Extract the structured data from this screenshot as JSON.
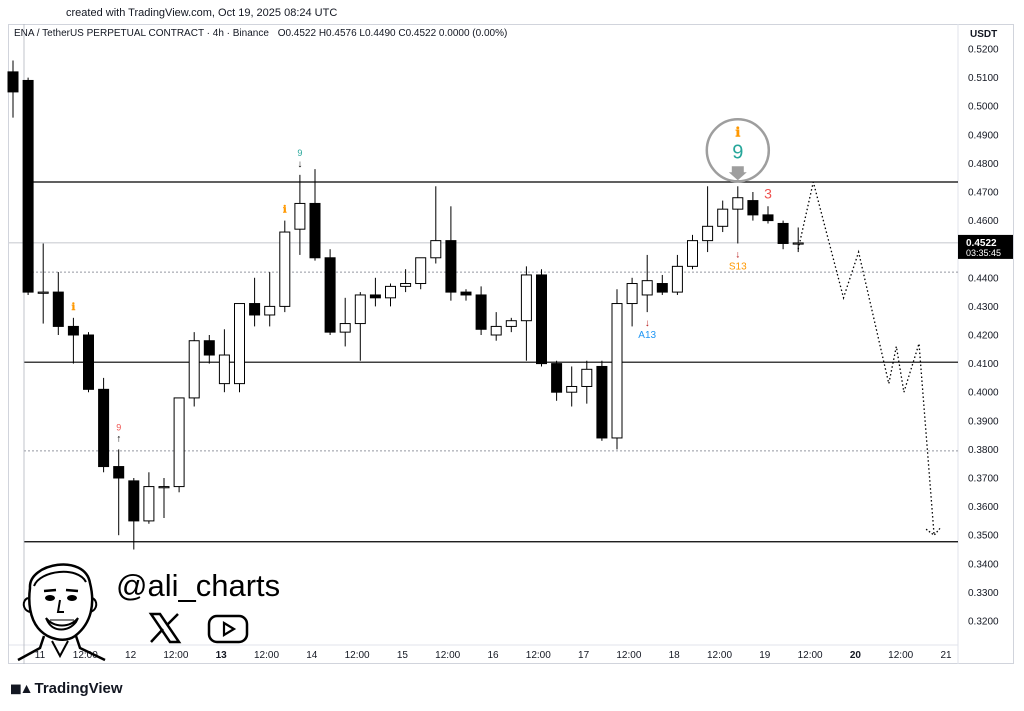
{
  "created_line": "created with TradingView.com, Oct 19, 2025 08:24 UTC",
  "header": {
    "symbol": "ENA / TetherUS PERPETUAL CONTRACT · 4h · Binance",
    "ohlc": "O0.4522  H0.4576  L0.4490  C0.4522  0.0000 (0.00%)"
  },
  "currency": "USDT",
  "watermark": {
    "handle": "@ali_charts",
    "brand": "TradingView"
  },
  "icons": [
    "avatar-caricature",
    "x-logo-icon",
    "youtube-icon",
    "tradingview-logo-icon"
  ],
  "colors": {
    "up_candle": "#ffffff",
    "down_candle": "#000000",
    "setup_green": "#26a69a",
    "setup_red": "#ef5350",
    "countdown_orange": "#ff9800",
    "aggressive_blue": "#2196f3"
  },
  "chart_data": {
    "type": "candlestick",
    "timeframe": "4h",
    "ylim": [
      0.315,
      0.522
    ],
    "y_ticks": [
      "0.5200",
      "0.5100",
      "0.5000",
      "0.4900",
      "0.4800",
      "0.4700",
      "0.4600",
      "0.4500",
      "0.4400",
      "0.4300",
      "0.4200",
      "0.4100",
      "0.4000",
      "0.3900",
      "0.3800",
      "0.3700",
      "0.3600",
      "0.3500",
      "0.3400",
      "0.3300",
      "0.3200"
    ],
    "x_ticks": [
      "11",
      "12:00",
      "12",
      "12:00",
      "13",
      "12:00",
      "14",
      "12:00",
      "15",
      "12:00",
      "16",
      "12:00",
      "17",
      "12:00",
      "18",
      "12:00",
      "19",
      "12:00",
      "20",
      "12:00",
      "21"
    ],
    "last_price": {
      "value": "0.4522",
      "countdown": "03:35:45"
    },
    "horizontal_levels": [
      0.4735,
      0.4105,
      0.3477
    ],
    "dashed_levels": [
      0.442,
      0.3795
    ],
    "candles": [
      {
        "o": 0.512,
        "h": 0.516,
        "l": 0.496,
        "c": 0.505
      },
      {
        "o": 0.509,
        "h": 0.51,
        "l": 0.434,
        "c": 0.435
      },
      {
        "o": 0.435,
        "h": 0.452,
        "l": 0.424,
        "c": 0.435
      },
      {
        "o": 0.435,
        "h": 0.442,
        "l": 0.42,
        "c": 0.423
      },
      {
        "o": 0.423,
        "h": 0.426,
        "l": 0.41,
        "c": 0.42
      },
      {
        "o": 0.42,
        "h": 0.421,
        "l": 0.4,
        "c": 0.401
      },
      {
        "o": 0.401,
        "h": 0.405,
        "l": 0.372,
        "c": 0.374
      },
      {
        "o": 0.374,
        "h": 0.38,
        "l": 0.35,
        "c": 0.37
      },
      {
        "o": 0.369,
        "h": 0.37,
        "l": 0.345,
        "c": 0.355
      },
      {
        "o": 0.355,
        "h": 0.372,
        "l": 0.354,
        "c": 0.367
      },
      {
        "o": 0.367,
        "h": 0.37,
        "l": 0.356,
        "c": 0.367
      },
      {
        "o": 0.367,
        "h": 0.398,
        "l": 0.365,
        "c": 0.398
      },
      {
        "o": 0.398,
        "h": 0.421,
        "l": 0.395,
        "c": 0.418
      },
      {
        "o": 0.418,
        "h": 0.42,
        "l": 0.41,
        "c": 0.413
      },
      {
        "o": 0.403,
        "h": 0.422,
        "l": 0.4,
        "c": 0.413
      },
      {
        "o": 0.403,
        "h": 0.43,
        "l": 0.4,
        "c": 0.431
      },
      {
        "o": 0.431,
        "h": 0.44,
        "l": 0.423,
        "c": 0.427
      },
      {
        "o": 0.427,
        "h": 0.442,
        "l": 0.423,
        "c": 0.43
      },
      {
        "o": 0.43,
        "h": 0.46,
        "l": 0.428,
        "c": 0.456
      },
      {
        "o": 0.457,
        "h": 0.476,
        "l": 0.448,
        "c": 0.466
      },
      {
        "o": 0.466,
        "h": 0.478,
        "l": 0.446,
        "c": 0.447
      },
      {
        "o": 0.447,
        "h": 0.45,
        "l": 0.42,
        "c": 0.421
      },
      {
        "o": 0.421,
        "h": 0.433,
        "l": 0.416,
        "c": 0.424
      },
      {
        "o": 0.424,
        "h": 0.435,
        "l": 0.411,
        "c": 0.434
      },
      {
        "o": 0.434,
        "h": 0.44,
        "l": 0.43,
        "c": 0.433
      },
      {
        "o": 0.433,
        "h": 0.438,
        "l": 0.43,
        "c": 0.437
      },
      {
        "o": 0.437,
        "h": 0.443,
        "l": 0.435,
        "c": 0.438
      },
      {
        "o": 0.438,
        "h": 0.447,
        "l": 0.436,
        "c": 0.447
      },
      {
        "o": 0.447,
        "h": 0.472,
        "l": 0.445,
        "c": 0.453
      },
      {
        "o": 0.453,
        "h": 0.465,
        "l": 0.432,
        "c": 0.435
      },
      {
        "o": 0.435,
        "h": 0.436,
        "l": 0.432,
        "c": 0.434
      },
      {
        "o": 0.434,
        "h": 0.437,
        "l": 0.42,
        "c": 0.422
      },
      {
        "o": 0.42,
        "h": 0.428,
        "l": 0.418,
        "c": 0.423
      },
      {
        "o": 0.423,
        "h": 0.426,
        "l": 0.421,
        "c": 0.425
      },
      {
        "o": 0.425,
        "h": 0.444,
        "l": 0.411,
        "c": 0.441
      },
      {
        "o": 0.441,
        "h": 0.443,
        "l": 0.409,
        "c": 0.41
      },
      {
        "o": 0.41,
        "h": 0.411,
        "l": 0.397,
        "c": 0.4
      },
      {
        "o": 0.4,
        "h": 0.409,
        "l": 0.395,
        "c": 0.402
      },
      {
        "o": 0.402,
        "h": 0.411,
        "l": 0.396,
        "c": 0.408
      },
      {
        "o": 0.409,
        "h": 0.411,
        "l": 0.383,
        "c": 0.384
      },
      {
        "o": 0.384,
        "h": 0.436,
        "l": 0.38,
        "c": 0.431
      },
      {
        "o": 0.431,
        "h": 0.44,
        "l": 0.423,
        "c": 0.438
      },
      {
        "o": 0.434,
        "h": 0.448,
        "l": 0.428,
        "c": 0.439
      },
      {
        "o": 0.438,
        "h": 0.441,
        "l": 0.434,
        "c": 0.435
      },
      {
        "o": 0.435,
        "h": 0.448,
        "l": 0.434,
        "c": 0.444
      },
      {
        "o": 0.444,
        "h": 0.455,
        "l": 0.443,
        "c": 0.453
      },
      {
        "o": 0.453,
        "h": 0.472,
        "l": 0.449,
        "c": 0.458
      },
      {
        "o": 0.458,
        "h": 0.467,
        "l": 0.456,
        "c": 0.464
      },
      {
        "o": 0.464,
        "h": 0.472,
        "l": 0.452,
        "c": 0.468
      },
      {
        "o": 0.467,
        "h": 0.47,
        "l": 0.46,
        "c": 0.462
      },
      {
        "o": 0.462,
        "h": 0.465,
        "l": 0.459,
        "c": 0.46
      },
      {
        "o": 0.459,
        "h": 0.46,
        "l": 0.45,
        "c": 0.452
      },
      {
        "o": 0.4522,
        "h": 0.4576,
        "l": 0.449,
        "c": 0.4522
      }
    ],
    "signals": [
      {
        "candle": 4,
        "text": "",
        "glyph": "ℹ",
        "color": "#ff9800",
        "pos": "above"
      },
      {
        "candle": 7,
        "text": "9",
        "glyph": "↑",
        "color": "#ef5350",
        "pos": "above"
      },
      {
        "candle": 19,
        "text": "9",
        "glyph": "↓",
        "color": "#26a69a",
        "pos": "above"
      },
      {
        "candle": 18,
        "text": "",
        "glyph": "ℹ",
        "color": "#ff9800",
        "pos": "above"
      },
      {
        "candle": 42,
        "text": "A13",
        "glyph": "↓",
        "color": "#2196f3",
        "pos": "below"
      },
      {
        "candle": 48,
        "text": "S13",
        "glyph": "↓",
        "color": "#ff9800",
        "pos": "below"
      },
      {
        "candle": 50,
        "text": "3",
        "glyph": "",
        "color": "#ef5350",
        "pos": "above"
      }
    ],
    "highlight": {
      "candle": 48,
      "text": "9",
      "glyph": "ℹ",
      "color": "#26a69a"
    },
    "projection": [
      [
        52,
        0.45
      ],
      [
        53,
        0.4735
      ],
      [
        55,
        0.433
      ],
      [
        56,
        0.449
      ],
      [
        58,
        0.403
      ],
      [
        58.5,
        0.416
      ],
      [
        59,
        0.4
      ],
      [
        60,
        0.417
      ],
      [
        61,
        0.35
      ]
    ]
  }
}
